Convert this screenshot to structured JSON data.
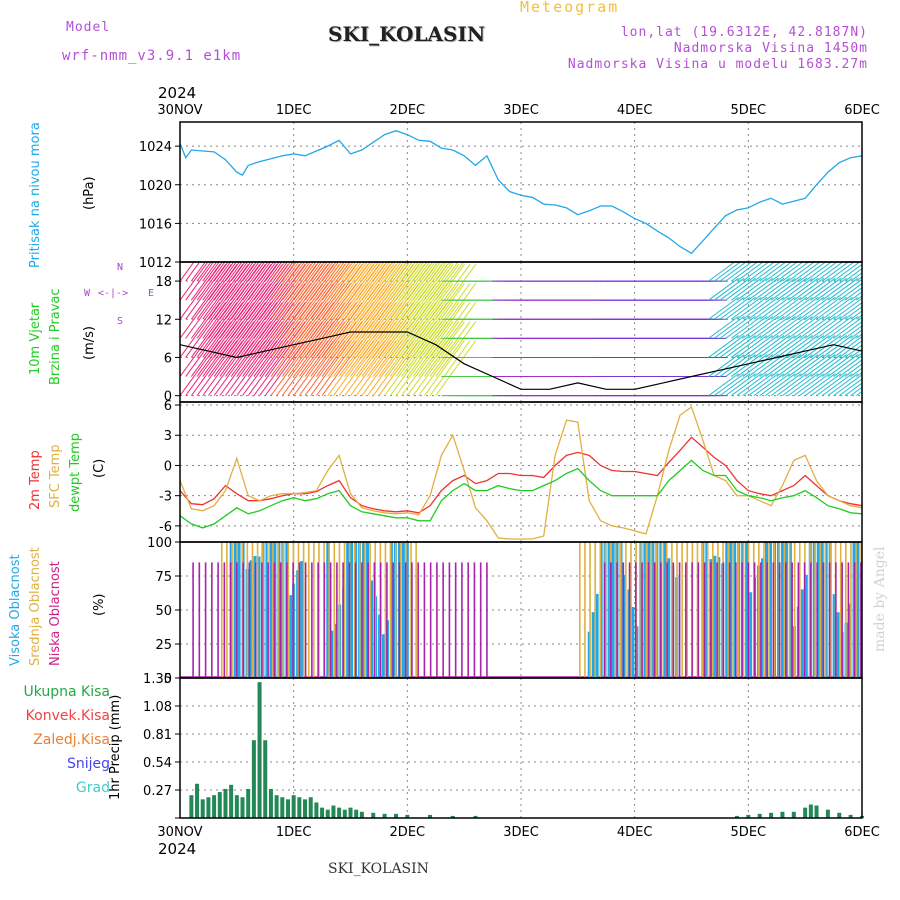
{
  "header": {
    "model_label": "Model",
    "model_name": "wrf-nmm_v3.9.1 e1km",
    "title": "SKI_KOLASIN",
    "subtitle": "Meteogram",
    "coords": "lon,lat (19.6312E, 42.8187N)",
    "elevation": "Nadmorska Visina 1450m",
    "model_elevation": "Nadmorska Visina u modelu 1683.27m",
    "year_top": "2024",
    "year_bottom": "2024",
    "footer": "SKI_KOLASIN",
    "signature": "made by Angel"
  },
  "panel_labels": {
    "pressure": {
      "name": "Pritisak na nivou mora",
      "unit": "(hPa)"
    },
    "wind": {
      "name1": "10m Vjetar",
      "name2": "Brzina i Pravac",
      "unit": "(m/s)"
    },
    "temp": {
      "name1": "2m Temp",
      "name2": "SFC Temp",
      "name3": "dewpt Temp",
      "unit": "(C)"
    },
    "cloud": {
      "name1": "Visoka Oblacnost",
      "name2": "Srednja Oblacnost",
      "name3": "Niska Oblacnost",
      "unit": "(%)"
    },
    "precip": {
      "unit": "1hr Precip (mm)"
    }
  },
  "compass": {
    "n": "N",
    "s": "S",
    "w": "W",
    "e": "E"
  },
  "precip_legend": [
    {
      "label": "Ukupna Kisa",
      "color": "#22aa44"
    },
    {
      "label": "Konvek.Kisa",
      "color": "#ee4444"
    },
    {
      "label": "Zaledj.Kisa",
      "color": "#f08030"
    },
    {
      "label": "Snijeg",
      "color": "#4444ee"
    },
    {
      "label": "Grad",
      "color": "#44cccc"
    }
  ],
  "colors": {
    "pressure": "#22a8e8",
    "temp2m": "#ee3333",
    "sfc": "#e0b040",
    "dewpt": "#22cc22",
    "high_cloud": "#22a8e8",
    "mid_cloud": "#e0b040",
    "low_cloud": "#aa22aa",
    "precip_total": "#228855"
  },
  "chart_data": [
    {
      "type": "line",
      "name": "pressure",
      "xlabel": "",
      "ylabel": "(hPa)",
      "categories": [
        "30NOV",
        "1DEC",
        "2DEC",
        "3DEC",
        "4DEC",
        "5DEC",
        "6DEC"
      ],
      "x": [
        0,
        0.05,
        0.1,
        0.2,
        0.3,
        0.4,
        0.5,
        0.55,
        0.6,
        0.7,
        0.8,
        0.9,
        1.0,
        1.1,
        1.2,
        1.3,
        1.4,
        1.5,
        1.6,
        1.7,
        1.8,
        1.9,
        2.0,
        2.1,
        2.2,
        2.3,
        2.4,
        2.5,
        2.6,
        2.7,
        2.8,
        2.9,
        3.0,
        3.1,
        3.2,
        3.3,
        3.4,
        3.5,
        3.6,
        3.7,
        3.8,
        3.9,
        4.0,
        4.1,
        4.2,
        4.3,
        4.4,
        4.5,
        4.6,
        4.7,
        4.8,
        4.9,
        5.0,
        5.1,
        5.2,
        5.3,
        5.4,
        5.5,
        5.6,
        5.7,
        5.8,
        5.9,
        6.0
      ],
      "y": [
        1024.3,
        1022.8,
        1023.6,
        1023.5,
        1023.4,
        1022.6,
        1021.3,
        1021.0,
        1022.0,
        1022.4,
        1022.7,
        1023.0,
        1023.2,
        1023.0,
        1023.5,
        1024.0,
        1024.6,
        1023.2,
        1023.6,
        1024.4,
        1025.2,
        1025.6,
        1025.2,
        1024.6,
        1024.5,
        1023.8,
        1023.6,
        1023.0,
        1022.0,
        1023.0,
        1020.5,
        1019.3,
        1018.9,
        1018.7,
        1018.0,
        1017.9,
        1017.6,
        1016.9,
        1017.3,
        1017.8,
        1017.8,
        1017.2,
        1016.5,
        1016.0,
        1015.2,
        1014.5,
        1013.6,
        1012.9,
        1014.2,
        1015.5,
        1016.8,
        1017.4,
        1017.6,
        1018.2,
        1018.6,
        1018.0,
        1018.3,
        1018.6,
        1020.0,
        1021.3,
        1022.3,
        1022.8,
        1023.0
      ],
      "yticks": [
        1012,
        1016,
        1020,
        1024
      ],
      "ylim": [
        1012,
        1026.5
      ]
    },
    {
      "type": "line",
      "name": "wind_speed",
      "ylabel": "(m/s)",
      "x": [
        0,
        0.25,
        0.5,
        0.75,
        1.0,
        1.25,
        1.5,
        1.75,
        2.0,
        2.25,
        2.5,
        2.75,
        3.0,
        3.25,
        3.5,
        3.75,
        4.0,
        4.25,
        4.5,
        4.75,
        5.0,
        5.25,
        5.5,
        5.75,
        6.0
      ],
      "y": [
        8,
        7,
        6,
        7,
        8,
        9,
        10,
        10,
        10,
        8,
        5,
        3,
        1,
        1,
        2,
        1,
        1,
        2,
        3,
        4,
        5,
        6,
        7,
        8,
        7
      ],
      "yticks": [
        0,
        6,
        12,
        18
      ],
      "ylim": [
        -1,
        21
      ]
    },
    {
      "type": "line",
      "name": "temperature",
      "ylabel": "(C)",
      "x": [
        0,
        0.1,
        0.2,
        0.3,
        0.4,
        0.5,
        0.6,
        0.7,
        0.8,
        0.9,
        1.0,
        1.1,
        1.2,
        1.3,
        1.4,
        1.5,
        1.6,
        1.7,
        1.8,
        1.9,
        2.0,
        2.1,
        2.2,
        2.3,
        2.4,
        2.5,
        2.6,
        2.7,
        2.8,
        2.9,
        3.0,
        3.1,
        3.2,
        3.3,
        3.4,
        3.5,
        3.6,
        3.7,
        3.8,
        3.9,
        4.0,
        4.1,
        4.2,
        4.3,
        4.4,
        4.5,
        4.6,
        4.7,
        4.8,
        4.9,
        5.0,
        5.1,
        5.2,
        5.3,
        5.4,
        5.5,
        5.6,
        5.7,
        5.8,
        5.9,
        6.0
      ],
      "series": [
        {
          "name": "2m Temp",
          "values": [
            -2.5,
            -3.8,
            -3.9,
            -3.3,
            -2.0,
            -2.8,
            -3.5,
            -3.5,
            -3.3,
            -3.0,
            -2.8,
            -2.8,
            -2.6,
            -2.0,
            -1.5,
            -3.2,
            -4.0,
            -4.3,
            -4.5,
            -4.6,
            -4.5,
            -4.7,
            -4.0,
            -2.5,
            -1.5,
            -1.0,
            -1.8,
            -1.5,
            -0.8,
            -0.8,
            -1.0,
            -1.0,
            -1.2,
            0.0,
            1.0,
            1.3,
            1.0,
            0.0,
            -0.5,
            -0.6,
            -0.6,
            -0.8,
            -1.0,
            0.3,
            1.5,
            2.8,
            1.8,
            0.8,
            0.0,
            -1.5,
            -2.5,
            -2.8,
            -3.0,
            -2.5,
            -2.0,
            -1.0,
            -2.0,
            -3.0,
            -3.5,
            -3.8,
            -4.0
          ]
        },
        {
          "name": "SFC Temp",
          "values": [
            -1.5,
            -4.3,
            -4.5,
            -4.0,
            -2.5,
            0.7,
            -3.0,
            -3.5,
            -3.0,
            -2.8,
            -2.8,
            -2.7,
            -2.5,
            -0.5,
            1.0,
            -2.8,
            -4.2,
            -4.5,
            -4.7,
            -4.8,
            -4.7,
            -4.9,
            -3.0,
            1.0,
            3.0,
            -0.5,
            -4.2,
            -5.5,
            -7.2,
            -7.3,
            -7.3,
            -7.3,
            -7.0,
            1.0,
            4.5,
            4.3,
            -3.5,
            -5.5,
            -6.0,
            -6.2,
            -6.5,
            -6.8,
            -3.0,
            1.5,
            5.0,
            5.8,
            2.5,
            -1.0,
            -1.5,
            -3.0,
            -3.0,
            -3.5,
            -4.0,
            -2.0,
            0.5,
            1.0,
            -1.5,
            -3.0,
            -3.5,
            -4.0,
            -4.2
          ]
        },
        {
          "name": "dewpt Temp",
          "values": [
            -5.0,
            -5.8,
            -6.2,
            -5.8,
            -5.0,
            -4.2,
            -4.8,
            -4.5,
            -4.0,
            -3.5,
            -3.2,
            -3.5,
            -3.3,
            -2.8,
            -2.5,
            -4.0,
            -4.6,
            -4.8,
            -5.0,
            -5.2,
            -5.2,
            -5.5,
            -5.5,
            -3.5,
            -2.5,
            -1.8,
            -2.5,
            -2.5,
            -2.0,
            -2.3,
            -2.5,
            -2.5,
            -2.0,
            -1.5,
            -0.8,
            -0.3,
            -1.5,
            -2.5,
            -3.0,
            -3.0,
            -3.0,
            -3.0,
            -3.0,
            -1.5,
            -0.5,
            0.5,
            -0.5,
            -1.0,
            -1.0,
            -2.5,
            -3.0,
            -3.2,
            -3.5,
            -3.2,
            -3.0,
            -2.5,
            -3.2,
            -4.0,
            -4.3,
            -4.7,
            -4.8
          ]
        }
      ],
      "yticks": [
        -6,
        -3,
        0,
        3,
        6
      ],
      "ylim": [
        -7.6,
        6.3
      ]
    },
    {
      "type": "bar",
      "name": "cloud_cover",
      "ylabel": "(%)",
      "series": [
        {
          "name": "Visoka Oblacnost",
          "segments": [
            [
              0.45,
              1.0
            ],
            [
              1.0,
              1.1
            ],
            [
              1.3,
              2.0
            ],
            [
              3.6,
              4.4
            ],
            [
              4.6,
              6.0
            ]
          ],
          "value": 100
        },
        {
          "name": "Srednja Oblacnost",
          "segments": [
            [
              0.35,
              2.1
            ],
            [
              3.5,
              6.0
            ]
          ],
          "value": 100
        },
        {
          "name": "Niska Oblacnost",
          "segments": [
            [
              0.08,
              2.7
            ],
            [
              3.7,
              6.0
            ]
          ],
          "value": 85
        }
      ],
      "yticks": [
        0,
        25,
        50,
        75,
        100
      ],
      "ylim": [
        0,
        100
      ]
    },
    {
      "type": "bar",
      "name": "precipitation",
      "ylabel": "1hr Precip (mm)",
      "x": [
        0.1,
        0.15,
        0.2,
        0.25,
        0.3,
        0.35,
        0.4,
        0.45,
        0.5,
        0.55,
        0.6,
        0.65,
        0.7,
        0.75,
        0.8,
        0.85,
        0.9,
        0.95,
        1.0,
        1.05,
        1.1,
        1.15,
        1.2,
        1.25,
        1.3,
        1.35,
        1.4,
        1.45,
        1.5,
        1.55,
        1.6,
        1.7,
        1.8,
        1.9,
        2.0,
        2.2,
        2.4,
        2.6,
        4.9,
        5.0,
        5.1,
        5.2,
        5.3,
        5.4,
        5.5,
        5.55,
        5.6,
        5.7,
        5.8,
        5.9,
        6.0
      ],
      "values": [
        0.22,
        0.33,
        0.18,
        0.2,
        0.22,
        0.25,
        0.28,
        0.32,
        0.22,
        0.2,
        0.28,
        0.75,
        1.31,
        0.75,
        0.28,
        0.22,
        0.2,
        0.18,
        0.22,
        0.2,
        0.18,
        0.2,
        0.15,
        0.1,
        0.08,
        0.12,
        0.1,
        0.08,
        0.1,
        0.08,
        0.06,
        0.05,
        0.04,
        0.04,
        0.03,
        0.03,
        0.02,
        0.02,
        0.02,
        0.03,
        0.04,
        0.05,
        0.06,
        0.06,
        0.1,
        0.13,
        0.12,
        0.08,
        0.05,
        0.03,
        0.02
      ],
      "yticks": [
        0,
        0.27,
        0.54,
        0.81,
        1.08,
        1.35
      ],
      "ylim": [
        0,
        1.35
      ]
    }
  ]
}
